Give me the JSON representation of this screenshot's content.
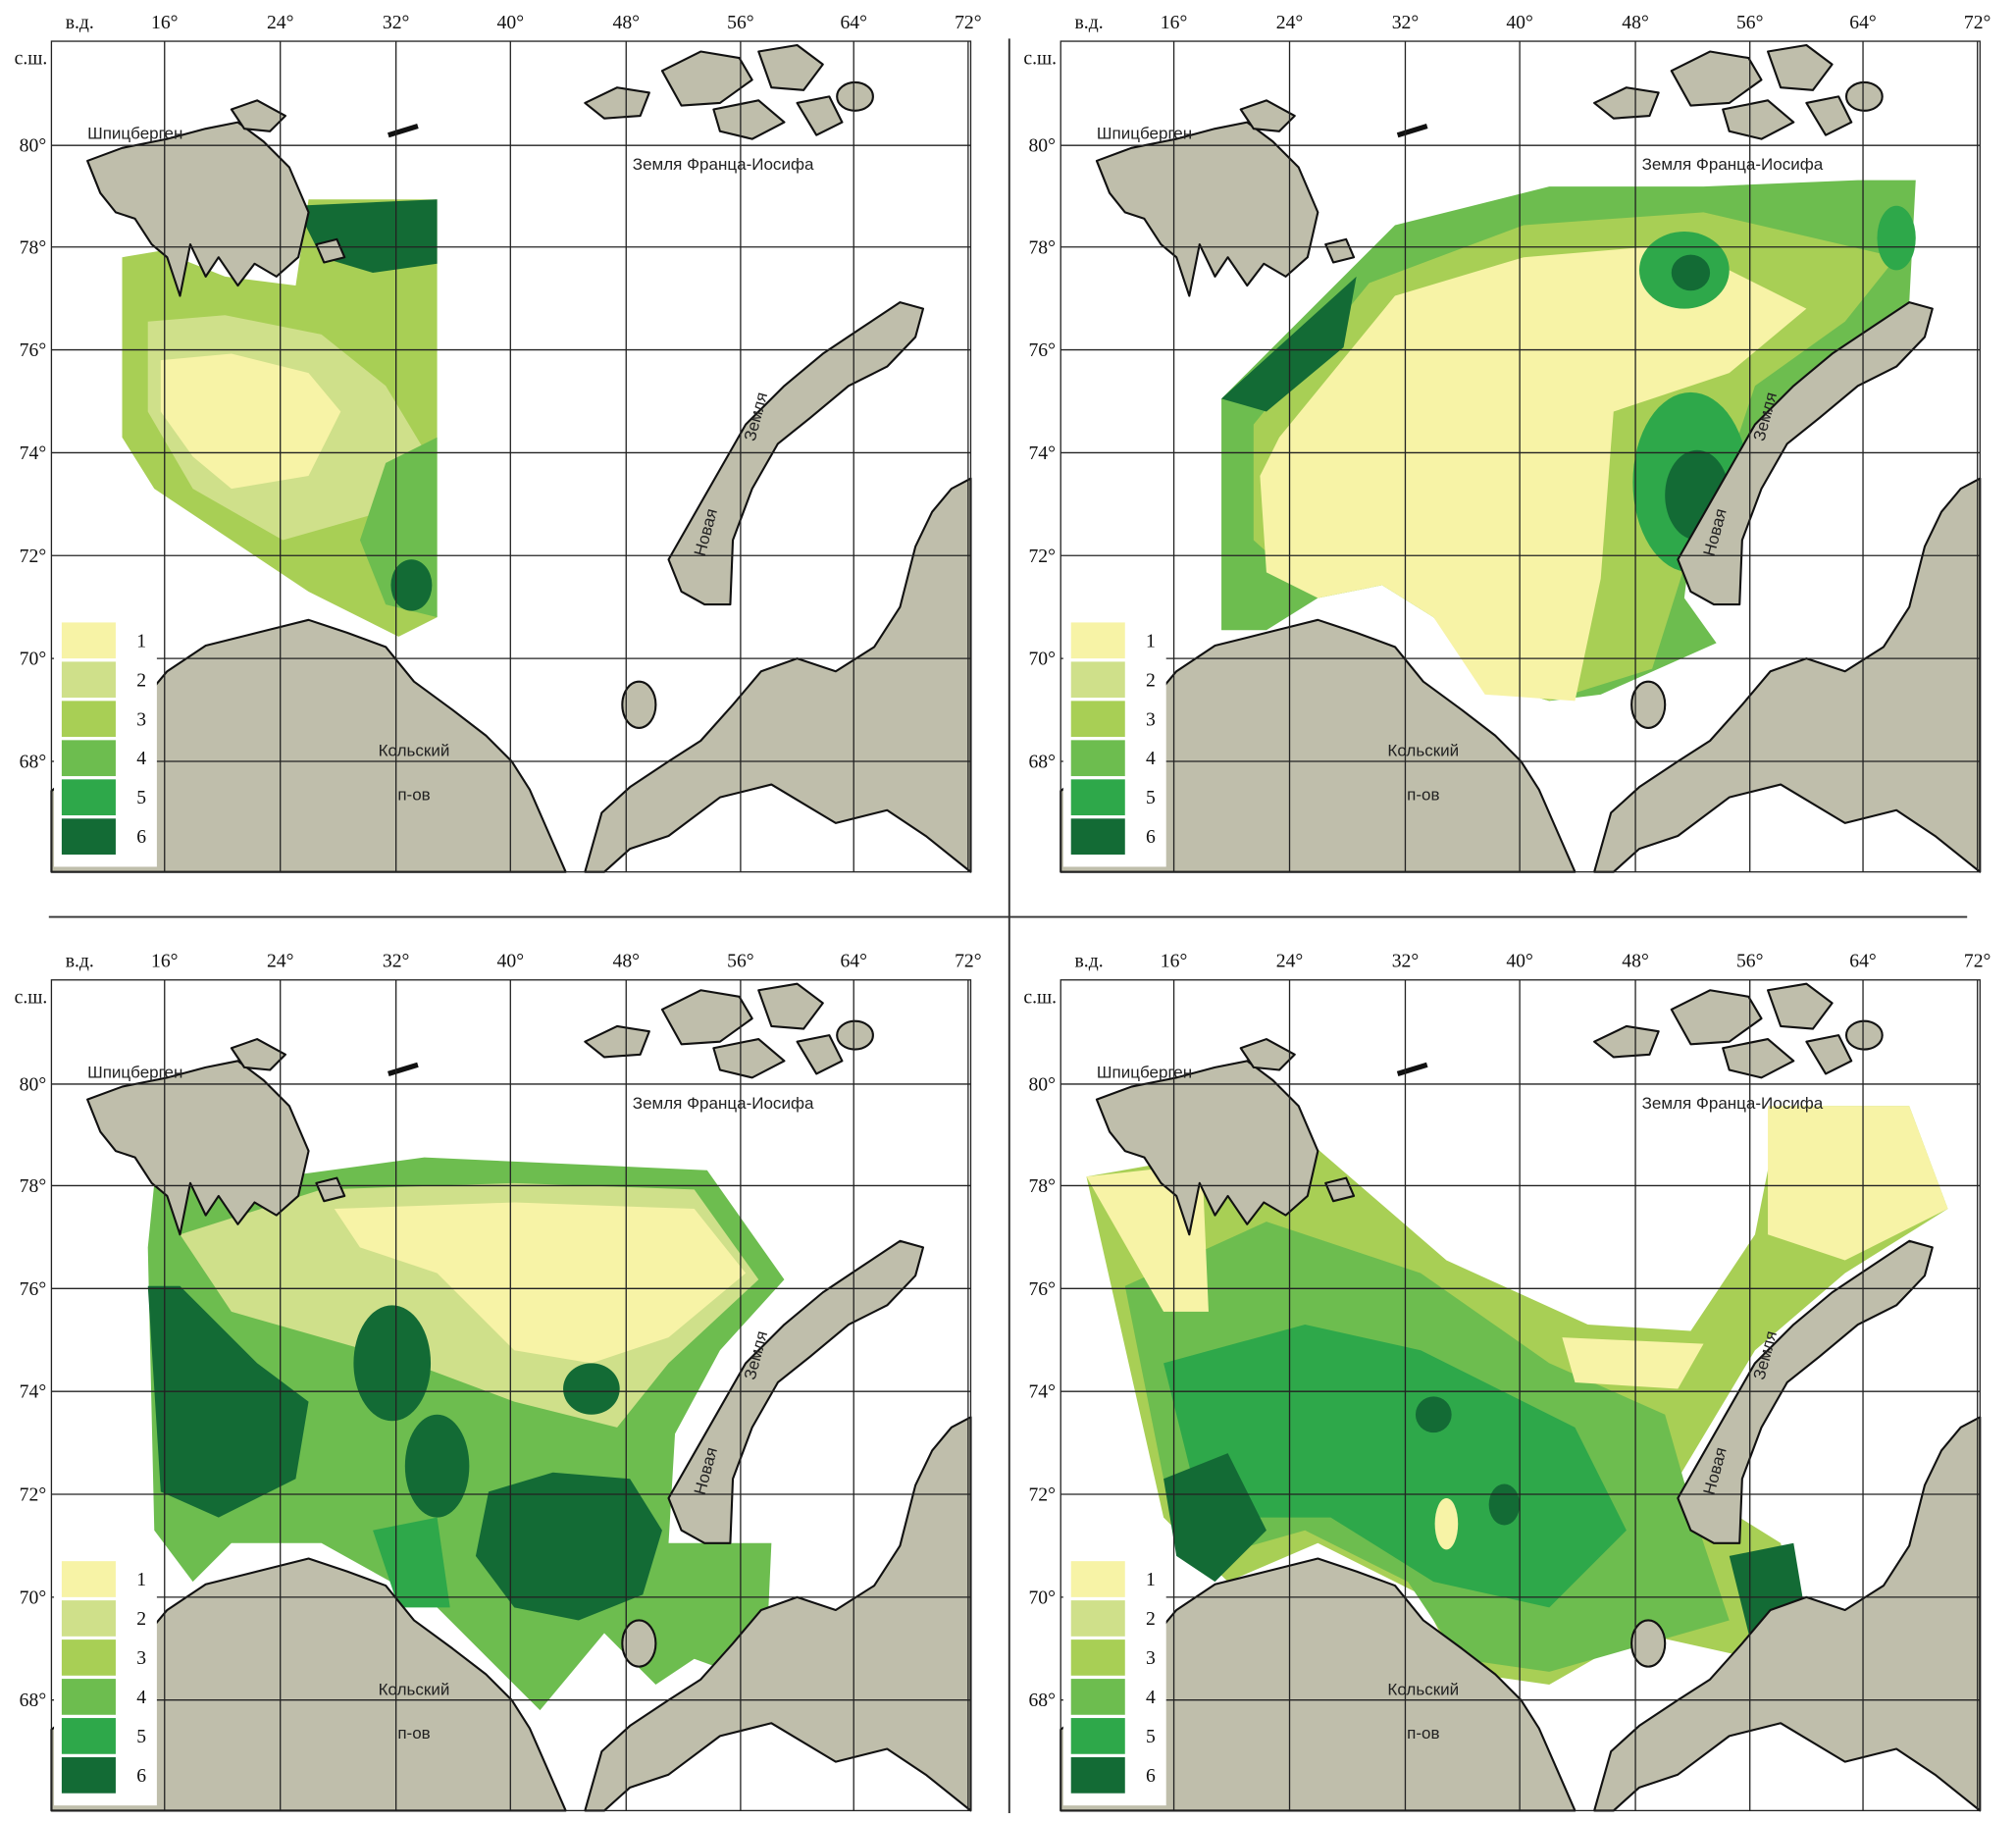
{
  "panels": [
    {
      "lon_axis_label": "в.д.",
      "lat_axis_label": "с.ш.",
      "lon_ticks": [
        "16°",
        "24°",
        "32°",
        "40°",
        "48°",
        "56°",
        "64°",
        "72°"
      ],
      "lat_ticks": [
        "80°",
        "78°",
        "76°",
        "74°",
        "72°",
        "70°",
        "68°"
      ],
      "places": {
        "svalbard": "Шпицберген",
        "franz_josef": "Земля Франца-Иосифа",
        "kola_1": "Кольский",
        "kola_2": "п-ов",
        "novaya_1": "Новая",
        "novaya_2": "Земля"
      },
      "legend": [
        "1",
        "2",
        "3",
        "4",
        "5",
        "6"
      ]
    },
    {
      "lon_axis_label": "в.д.",
      "lat_axis_label": "с.ш.",
      "lon_ticks": [
        "16°",
        "24°",
        "32°",
        "40°",
        "48°",
        "56°",
        "64°",
        "72°"
      ],
      "lat_ticks": [
        "80°",
        "78°",
        "76°",
        "74°",
        "72°",
        "70°",
        "68°"
      ],
      "places": {
        "svalbard": "Шпицберген",
        "franz_josef": "Земля Франца-Иосифа",
        "kola_1": "Кольский",
        "kola_2": "п-ов",
        "novaya_1": "Новая",
        "novaya_2": "Земля"
      },
      "legend": [
        "1",
        "2",
        "3",
        "4",
        "5",
        "6"
      ]
    },
    {
      "lon_axis_label": "в.д.",
      "lat_axis_label": "с.ш.",
      "lon_ticks": [
        "16°",
        "24°",
        "32°",
        "40°",
        "48°",
        "56°",
        "64°",
        "72°"
      ],
      "lat_ticks": [
        "80°",
        "78°",
        "76°",
        "74°",
        "72°",
        "70°",
        "68°"
      ],
      "places": {
        "svalbard": "Шпицберген",
        "franz_josef": "Земля Франца-Иосифа",
        "kola_1": "Кольский",
        "kola_2": "п-ов",
        "novaya_1": "Новая",
        "novaya_2": "Земля"
      },
      "legend": [
        "1",
        "2",
        "3",
        "4",
        "5",
        "6"
      ]
    },
    {
      "lon_axis_label": "в.д.",
      "lat_axis_label": "с.ш.",
      "lon_ticks": [
        "16°",
        "24°",
        "32°",
        "40°",
        "48°",
        "56°",
        "64°",
        "72°"
      ],
      "lat_ticks": [
        "80°",
        "78°",
        "76°",
        "74°",
        "72°",
        "70°",
        "68°"
      ],
      "places": {
        "svalbard": "Шпицберген",
        "franz_josef": "Земля Франца-Иосифа",
        "kola_1": "Кольский",
        "kola_2": "п-ов",
        "novaya_1": "Новая",
        "novaya_2": "Земля"
      },
      "legend": [
        "1",
        "2",
        "3",
        "4",
        "5",
        "6"
      ]
    }
  ]
}
